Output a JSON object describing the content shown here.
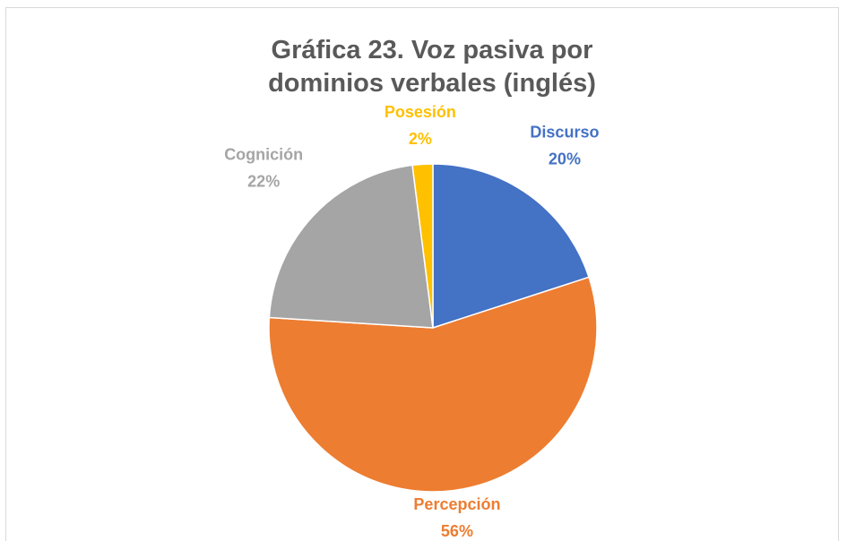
{
  "chart_data": {
    "type": "pie",
    "title": "Gráfica 23. Voz pasiva por dominios verbales (inglés)",
    "categories": [
      "Discurso",
      "Percepción",
      "Cognición",
      "Posesión"
    ],
    "values": [
      20,
      56,
      22,
      2
    ],
    "value_labels": [
      "20%",
      "56%",
      "22%",
      "2%"
    ],
    "colors": [
      "#4472c4",
      "#ed7d31",
      "#a5a5a5",
      "#ffc000"
    ]
  }
}
